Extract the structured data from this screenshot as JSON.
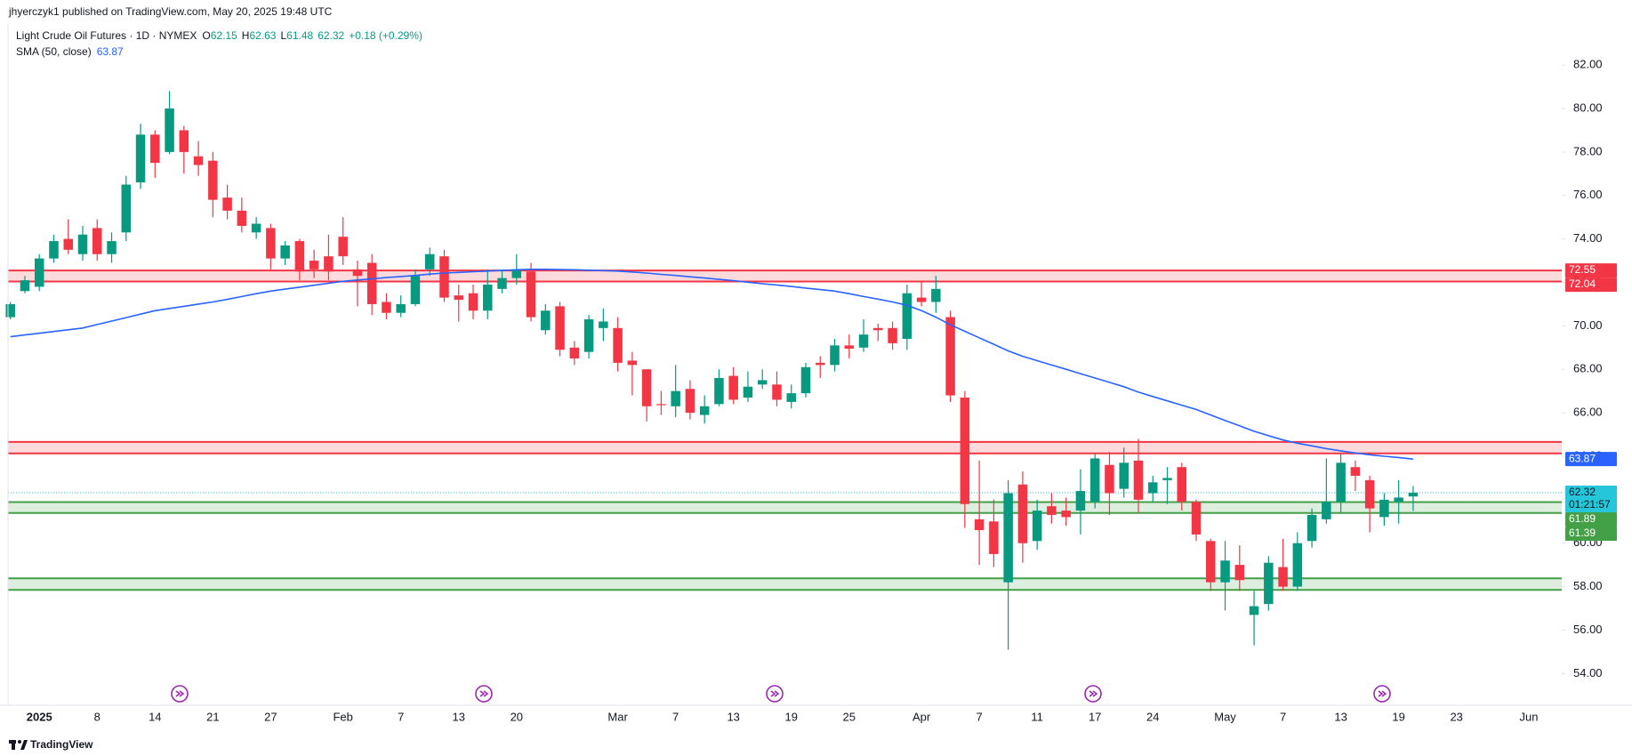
{
  "header": {
    "publisher": "jhyerczyk1 published on TradingView.com, May 20, 2025 19:48 UTC"
  },
  "legend": {
    "symbol": "Light Crude Oil Futures · 1D · NYMEX",
    "open_label": "O",
    "high_label": "H",
    "low_label": "L",
    "change": "+0.18 (+0.29%)"
  },
  "footer": {
    "brand": "TradingView"
  },
  "chart_data": {
    "type": "candlestick",
    "up_color": "#089981",
    "down_color": "#f23645",
    "categories": [
      null,
      null,
      "2025",
      null,
      null,
      null,
      "8",
      null,
      null,
      null,
      "14",
      null,
      null,
      null,
      "21",
      null,
      null,
      null,
      "27",
      null,
      null,
      null,
      null,
      "Feb",
      null,
      null,
      null,
      "7",
      null,
      null,
      null,
      "13",
      null,
      null,
      null,
      "20",
      null,
      null,
      null,
      null,
      null,
      null,
      "Mar",
      null,
      null,
      null,
      "7",
      null,
      null,
      null,
      "13",
      null,
      null,
      null,
      "19",
      null,
      null,
      null,
      "25",
      null,
      null,
      null,
      null,
      "Apr",
      null,
      null,
      null,
      "7",
      null,
      null,
      null,
      "11",
      null,
      null,
      null,
      "17",
      null,
      null,
      null,
      "24",
      null,
      null,
      null,
      null,
      "May",
      null,
      null,
      null,
      "7",
      null,
      null,
      null,
      "13",
      null,
      null,
      null,
      "19",
      null,
      null,
      null,
      "23",
      null,
      null,
      null,
      null,
      "Jun"
    ],
    "open": [
      70.4,
      71.6,
      71.8,
      73.1,
      74.0,
      73.3,
      74.5,
      73.3,
      74.3,
      76.6,
      78.8,
      78.0,
      79.0,
      77.8,
      77.6,
      75.9,
      75.3,
      74.3,
      74.5,
      73.1,
      73.9,
      73.0,
      73.2,
      74.1,
      72.6,
      72.9,
      71.1,
      70.6,
      71.0,
      72.6,
      73.2,
      71.4,
      71.5,
      70.7,
      71.7,
      72.2,
      72.5,
      69.8,
      70.9,
      69.0,
      68.8,
      69.9,
      69.9,
      68.4,
      68.0,
      66.4,
      66.3,
      67.1,
      65.9,
      66.4,
      67.7,
      66.7,
      67.3,
      67.3,
      66.5,
      66.9,
      68.3,
      68.2,
      69.1,
      69.0,
      69.9,
      69.9,
      69.4,
      71.3,
      71.1,
      70.4,
      66.7,
      61.1,
      61.0,
      58.2,
      62.7,
      60.1,
      61.7,
      61.5,
      61.5,
      61.9,
      63.6,
      62.5,
      63.8,
      62.3,
      62.9,
      63.5,
      61.9,
      60.1,
      58.2,
      59.0,
      56.7,
      57.2,
      58.9,
      58.0,
      60.1,
      61.1,
      61.9,
      63.5,
      62.9,
      61.2,
      61.9,
      62.15,
      null,
      null,
      null,
      null,
      null,
      null,
      null,
      null
    ],
    "high": [
      71.1,
      72.3,
      73.3,
      74.2,
      74.9,
      74.6,
      74.9,
      74.3,
      76.9,
      79.3,
      79.0,
      80.8,
      79.2,
      78.5,
      78.0,
      76.5,
      75.9,
      75.0,
      74.7,
      73.9,
      74.0,
      73.5,
      74.2,
      75.0,
      73.0,
      73.3,
      71.5,
      71.4,
      72.6,
      73.6,
      73.5,
      71.9,
      71.9,
      72.6,
      72.6,
      73.3,
      72.9,
      71.0,
      71.1,
      69.3,
      70.5,
      70.8,
      70.4,
      68.8,
      68.0,
      67.0,
      68.2,
      67.5,
      66.8,
      68.0,
      68.1,
      67.9,
      68.0,
      67.9,
      67.3,
      68.3,
      68.6,
      69.4,
      69.6,
      70.3,
      70.1,
      70.2,
      71.9,
      72.0,
      72.3,
      70.7,
      67.0,
      63.8,
      62.0,
      62.9,
      63.3,
      62.0,
      62.3,
      62.1,
      63.4,
      64.1,
      64.2,
      64.4,
      64.8,
      63.1,
      63.5,
      63.7,
      62.0,
      60.2,
      60.1,
      59.9,
      57.8,
      59.4,
      60.2,
      60.5,
      61.6,
      63.9,
      64.1,
      63.8,
      63.1,
      62.3,
      62.9,
      62.63,
      null,
      null,
      null,
      null,
      null,
      null,
      null,
      null
    ],
    "low": [
      70.3,
      71.5,
      71.6,
      72.9,
      73.3,
      73.0,
      73.0,
      72.9,
      73.9,
      76.3,
      76.8,
      77.9,
      77.0,
      76.9,
      75.0,
      74.9,
      74.3,
      74.0,
      72.6,
      72.8,
      72.1,
      72.2,
      72.1,
      72.8,
      70.9,
      70.5,
      70.3,
      70.4,
      70.9,
      72.3,
      71.1,
      70.2,
      70.3,
      70.3,
      71.5,
      71.9,
      70.2,
      69.6,
      68.6,
      68.2,
      68.5,
      69.3,
      67.9,
      66.8,
      65.6,
      65.9,
      65.8,
      65.7,
      65.5,
      66.3,
      66.4,
      66.5,
      67.1,
      66.3,
      66.2,
      66.7,
      67.6,
      67.9,
      68.5,
      68.8,
      69.3,
      68.9,
      68.9,
      70.9,
      70.6,
      66.5,
      60.7,
      59.0,
      58.9,
      55.1,
      59.1,
      59.7,
      60.9,
      60.8,
      60.4,
      61.6,
      61.3,
      62.1,
      61.4,
      61.9,
      61.8,
      61.5,
      60.1,
      57.8,
      56.9,
      57.8,
      55.3,
      56.9,
      57.8,
      57.8,
      59.8,
      60.9,
      61.4,
      62.4,
      60.5,
      60.8,
      60.9,
      61.48,
      null,
      null,
      null,
      null,
      null,
      null,
      null,
      null
    ],
    "close": [
      71.0,
      72.1,
      73.1,
      73.9,
      73.5,
      74.2,
      73.3,
      73.9,
      76.5,
      78.8,
      77.5,
      80.0,
      78.0,
      77.4,
      75.8,
      75.3,
      74.6,
      74.7,
      73.1,
      73.7,
      72.5,
      72.6,
      72.5,
      73.2,
      72.3,
      71.0,
      70.6,
      71.0,
      72.3,
      73.3,
      71.3,
      71.2,
      70.7,
      71.9,
      72.2,
      72.6,
      70.4,
      70.7,
      68.9,
      68.5,
      70.3,
      70.2,
      68.3,
      68.2,
      66.3,
      66.35,
      67.0,
      66.0,
      66.3,
      67.6,
      66.6,
      67.2,
      67.5,
      66.6,
      66.9,
      68.1,
      68.2,
      69.1,
      68.95,
      69.6,
      69.8,
      69.2,
      71.5,
      71.1,
      71.7,
      66.8,
      61.8,
      60.6,
      59.5,
      62.3,
      60.0,
      61.5,
      61.3,
      61.2,
      62.4,
      63.9,
      62.3,
      63.7,
      62.0,
      62.8,
      63.0,
      61.9,
      60.4,
      58.2,
      59.2,
      58.3,
      57.1,
      59.1,
      58.0,
      60.0,
      61.3,
      61.9,
      63.7,
      63.1,
      61.6,
      62.0,
      62.1,
      62.32,
      null,
      null,
      null,
      null,
      null,
      null,
      null,
      null
    ],
    "series": [
      {
        "name": "SMA (50, close)",
        "color": "#2962ff",
        "values": [
          69.5,
          69.58,
          69.66,
          69.74,
          69.82,
          69.9,
          70.06,
          70.22,
          70.38,
          70.54,
          70.7,
          70.8,
          70.9,
          71.0,
          71.1,
          71.22,
          71.35,
          71.48,
          71.6,
          71.69,
          71.78,
          71.87,
          71.96,
          72.05,
          72.11,
          72.16,
          72.22,
          72.27,
          72.32,
          72.38,
          72.43,
          72.46,
          72.49,
          72.52,
          72.55,
          72.58,
          72.6,
          72.6,
          72.59,
          72.58,
          72.56,
          72.54,
          72.52,
          72.48,
          72.43,
          72.37,
          72.32,
          72.26,
          72.2,
          72.14,
          72.08,
          72.01,
          71.94,
          71.88,
          71.81,
          71.74,
          71.67,
          71.6,
          71.48,
          71.35,
          71.23,
          71.1,
          70.95,
          70.7,
          70.4,
          70.05,
          69.75,
          69.45,
          69.15,
          68.85,
          68.6,
          68.4,
          68.2,
          68.0,
          67.8,
          67.6,
          67.4,
          67.2,
          66.95,
          66.75,
          66.55,
          66.35,
          66.15,
          65.9,
          65.65,
          65.4,
          65.15,
          64.95,
          64.75,
          64.6,
          64.48,
          64.35,
          64.25,
          64.15,
          64.07,
          64.0,
          63.94,
          63.87,
          null,
          null,
          null,
          null,
          null,
          null,
          null,
          null
        ]
      }
    ],
    "zones": [
      {
        "top": 72.55,
        "bottom": 72.04,
        "color": "#f23645",
        "labeled": true
      },
      {
        "top": 64.66,
        "bottom": 64.13,
        "color": "#f23645",
        "labeled": false
      },
      {
        "top": 61.89,
        "bottom": 61.39,
        "color": "#43a047",
        "labeled": true
      },
      {
        "top": 58.38,
        "bottom": 57.85,
        "color": "#43a047",
        "labeled": false
      }
    ],
    "last_price_color": "#26c6da",
    "countdown": "01:21:57",
    "ylim": [
      52.54,
      83.93
    ],
    "yticks": [
      {
        "value": 54,
        "label": "54.00"
      },
      {
        "value": 56,
        "label": "56.00"
      },
      {
        "value": 58,
        "label": "58.00"
      },
      {
        "value": 60,
        "label": "60.00"
      },
      {
        "value": 62,
        "label": "62.00"
      },
      {
        "value": 64,
        "label": "64.00"
      },
      {
        "value": 66,
        "label": "66.00"
      },
      {
        "value": 68,
        "label": "68.00"
      },
      {
        "value": 70,
        "label": "70.00"
      },
      {
        "value": 72,
        "label": "72.00"
      },
      {
        "value": 74,
        "label": "74.00"
      },
      {
        "value": 76,
        "label": "76.00"
      },
      {
        "value": 78,
        "label": "78.00"
      },
      {
        "value": 80,
        "label": "80.00"
      },
      {
        "value": 82,
        "label": "82.00"
      }
    ],
    "grid": false
  }
}
